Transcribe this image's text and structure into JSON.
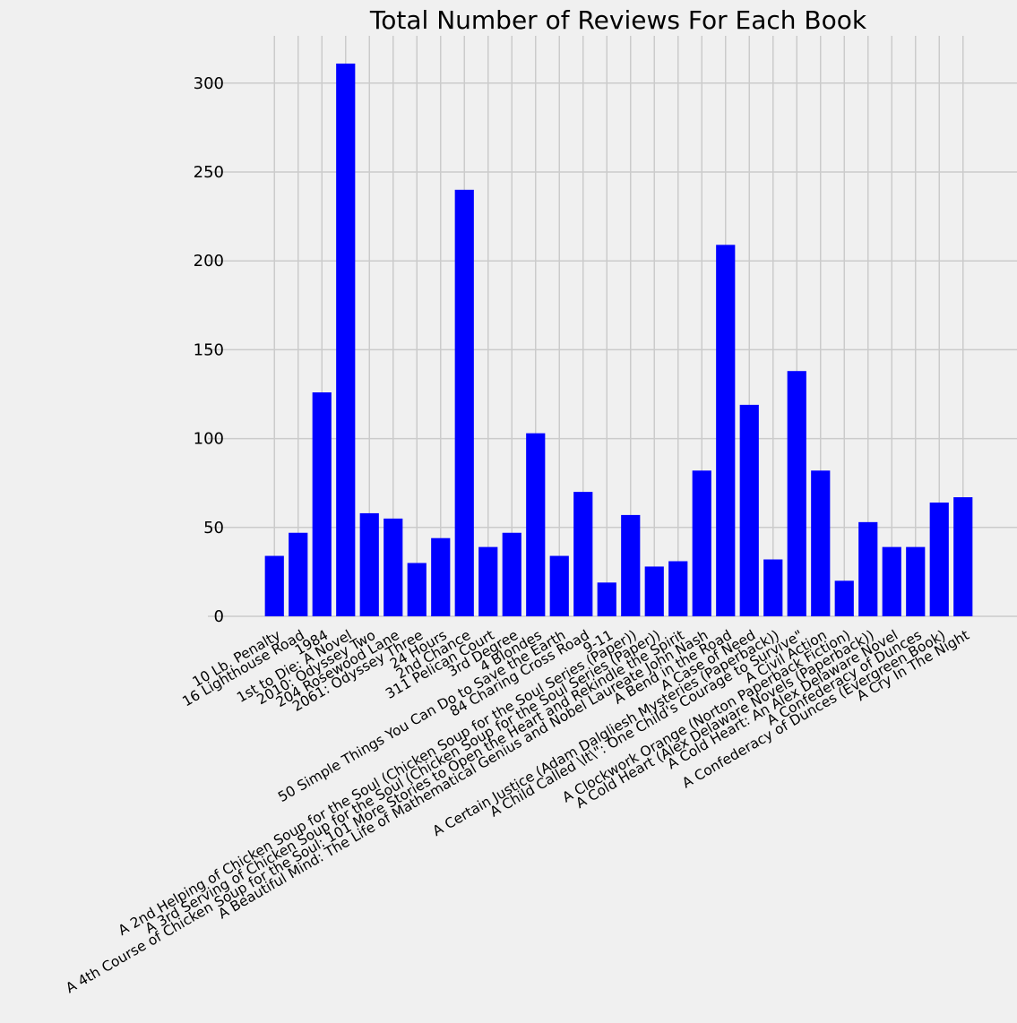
{
  "chart_data": {
    "type": "bar",
    "title": "Total Number of Reviews For Each Book",
    "xlabel": "",
    "ylabel": "",
    "ylim": [
      0,
      320
    ],
    "yticks": [
      0,
      50,
      100,
      150,
      200,
      250,
      300
    ],
    "grid": true,
    "bar_color": "#0000ff",
    "background_color": "#f0f0f0",
    "grid_color": "#cbcbcb",
    "categories": [
      "10 Lb. Penalty",
      "16 Lighthouse Road",
      "1984",
      "1st to Die: A Novel",
      "2010: Odyssey Two",
      "204 Rosewood Lane",
      "2061: Odyssey Three",
      "24 Hours",
      "2nd Chance",
      "311 Pelican Court",
      "3rd Degree",
      "4 Blondes",
      "50 Simple Things You Can Do to Save the Earth",
      "84 Charing Cross Road",
      "9-11",
      "A 2nd Helping of Chicken Soup for the Soul (Chicken Soup for the Soul Series (Paper))",
      "A 3rd Serving of Chicken Soup for the Soul (Chicken Soup for the Soul Series (Paper))",
      "A 4th Course of Chicken Soup for the Soul: 101 More Stories to Open the Heart and Rekindle the Spirit",
      "A Beautiful Mind: The Life of Mathematical Genius and Nobel Laureate John Nash",
      "A Bend in the Road",
      "A Case of Need",
      "A Certain Justice (Adam Dalgliesh Mysteries (Paperback))",
      "A Child Called \\It\\\": One Child's Courage to Survive\"",
      "A Civil Action",
      "A Clockwork Orange (Norton Paperback Fiction)",
      "A Cold Heart (Alex Delaware Novels (Paperback))",
      "A Cold Heart: An Alex Delaware Novel",
      "A Confederacy of Dunces",
      "A Confederacy of Dunces (Evergreen Book)",
      "A Cry In The Night"
    ],
    "values": [
      34,
      47,
      126,
      311,
      58,
      55,
      30,
      44,
      240,
      39,
      47,
      103,
      34,
      70,
      19,
      57,
      28,
      31,
      82,
      209,
      119,
      32,
      138,
      82,
      20,
      53,
      39,
      39,
      64,
      67
    ]
  }
}
